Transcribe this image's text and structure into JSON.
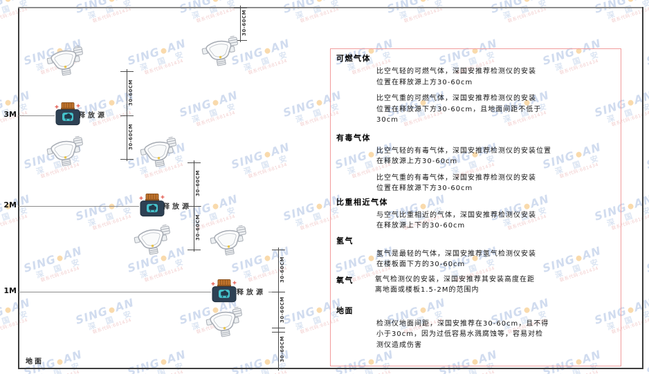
{
  "diagram": {
    "height_labels": [
      "3M",
      "2M",
      "1M"
    ],
    "ground_label": "地面",
    "release_source_label": "释放源",
    "dimension_label": "30-60CM"
  },
  "panel": {
    "sections": [
      {
        "heading": "可燃气体",
        "paragraphs": [
          "比空气轻的可燃气体，深国安推荐检测仪的安装\n位置在释放源上方30-60cm",
          "比空气重的可燃气体，深国安推荐检测仪的安装\n位置在释放源下方30-60cm，且地面间距不低于\n30cm"
        ]
      },
      {
        "heading": "有毒气体",
        "paragraphs": [
          "比空气轻的有毒气体，深国安推荐检测仪的安装位置\n在释放源上方30-60cm",
          "比空气重的有毒气体，深国安推荐检测仪的安装\n位置在释放源下方30-60cm"
        ]
      },
      {
        "heading": "比重相近气体",
        "paragraphs": [
          "与空气比重相近的气体，深国安推荐检测仪安装\n在释放源上下的30-60cm"
        ]
      },
      {
        "heading": "氢气",
        "paragraphs": [
          "氢气是最轻的气体，深国安推荐氢气检测仪安装\n在楼板面下方的30-60cm"
        ]
      },
      {
        "heading": "氧气",
        "paragraphs": [
          "氧气检测仪的安装，深国安推荐其安装高度在距\n离地面或楼板1.5-2M的范围内"
        ]
      },
      {
        "heading": "地面",
        "paragraphs": [
          "检测仪地面间距，深国安推荐在30-60cm，且不得\n小于30cm，因为过低容易水溅腐蚀等，容易对检\n测仪造成伤害"
        ]
      }
    ]
  },
  "watermark": {
    "brand_left": "SING",
    "brand_right": "AN",
    "brand_cn": "深 国 安",
    "contact": "联系代码:681434"
  },
  "colors": {
    "panel_border": "#f19b9b",
    "source_body": "#2e4154",
    "source_cap": "#c0732b",
    "source_icon": "#45c2cb",
    "detector_outline": "#a8adb5",
    "watermark_blue": "#a9c0e2",
    "watermark_dot": "#f2a93b",
    "sparkle_red": "#e2574c"
  }
}
